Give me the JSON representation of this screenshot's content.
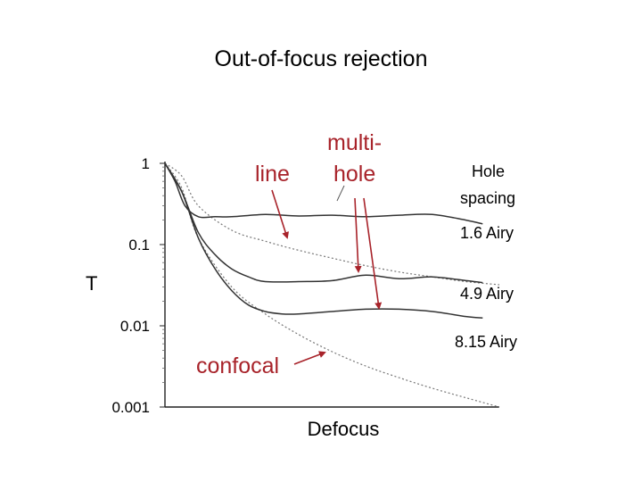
{
  "chart_data": {
    "type": "line",
    "title": "Out-of-focus rejection",
    "xlabel": "Defocus",
    "ylabel": "T",
    "yscale": "log",
    "ylim": [
      0.001,
      1
    ],
    "yticks": [
      "1",
      "0.1",
      "0.01",
      "0.001"
    ],
    "yticks_values": [
      1,
      0.1,
      0.01,
      0.001
    ],
    "grid": false,
    "series": [
      {
        "name": "line",
        "style": "dashed",
        "x": [
          0,
          0.05,
          0.1,
          0.2,
          0.3,
          0.4,
          0.5,
          0.6,
          0.7,
          0.8,
          0.9,
          1.0
        ],
        "y": [
          1.0,
          0.7,
          0.3,
          0.15,
          0.11,
          0.085,
          0.068,
          0.055,
          0.046,
          0.04,
          0.035,
          0.032
        ]
      },
      {
        "name": "confocal",
        "style": "dashed",
        "x": [
          0,
          0.05,
          0.1,
          0.2,
          0.3,
          0.4,
          0.5,
          0.6,
          0.7,
          0.8,
          0.9,
          1.0
        ],
        "y": [
          1.0,
          0.5,
          0.12,
          0.03,
          0.014,
          0.0078,
          0.0048,
          0.0032,
          0.0023,
          0.0017,
          0.0013,
          0.001
        ]
      },
      {
        "name": "1.6 Airy",
        "style": "solid",
        "x": [
          0,
          0.03,
          0.06,
          0.1,
          0.15,
          0.2,
          0.3,
          0.4,
          0.5,
          0.6,
          0.7,
          0.8,
          0.9,
          0.95
        ],
        "y": [
          1.0,
          0.6,
          0.3,
          0.22,
          0.22,
          0.22,
          0.235,
          0.225,
          0.23,
          0.22,
          0.23,
          0.235,
          0.2,
          0.18
        ]
      },
      {
        "name": "4.9 Airy",
        "style": "solid",
        "x": [
          0,
          0.05,
          0.1,
          0.15,
          0.2,
          0.25,
          0.3,
          0.4,
          0.5,
          0.6,
          0.7,
          0.8,
          0.9,
          0.95
        ],
        "y": [
          1.0,
          0.45,
          0.14,
          0.075,
          0.05,
          0.04,
          0.035,
          0.035,
          0.036,
          0.042,
          0.038,
          0.04,
          0.036,
          0.034
        ]
      },
      {
        "name": "8.15 Airy",
        "style": "solid",
        "x": [
          0,
          0.05,
          0.1,
          0.15,
          0.2,
          0.25,
          0.3,
          0.35,
          0.4,
          0.5,
          0.6,
          0.7,
          0.8,
          0.9,
          0.95
        ],
        "y": [
          1.0,
          0.45,
          0.12,
          0.05,
          0.027,
          0.018,
          0.015,
          0.014,
          0.014,
          0.015,
          0.016,
          0.016,
          0.015,
          0.013,
          0.0125
        ]
      }
    ],
    "annotations": {
      "series_labels": [
        "line",
        "multi-",
        "hole",
        "confocal"
      ],
      "spacing_header": [
        "Hole",
        "spacing"
      ],
      "spacing_values": [
        "1.6 Airy",
        "4.9 Airy",
        "8.15 Airy"
      ],
      "label_color": "#a8232a"
    }
  }
}
